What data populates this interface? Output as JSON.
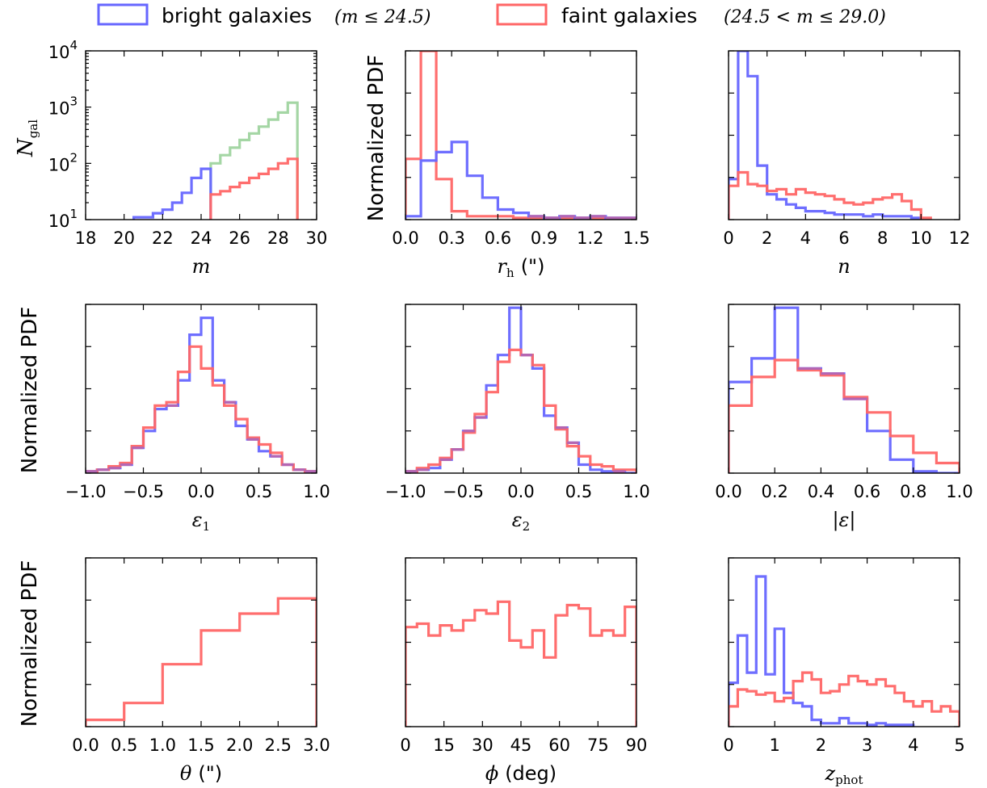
{
  "colors": {
    "bright": "#6666ff",
    "faint": "#ff6666",
    "all": "#9fd49f",
    "overlap": "#b0308a"
  },
  "legend": {
    "placement": "top",
    "bright_text": "bright galaxies",
    "bright_math": "(m ≤ 24.5)",
    "faint_text": "faint galaxies",
    "faint_math": "(24.5 < m ≤ 29.0)"
  },
  "chart_data": [
    {
      "type": "step-histogram",
      "panel": "m",
      "xlabel": "m",
      "ylabel": "N_gal",
      "log_y": true,
      "xlim": [
        18,
        30
      ],
      "ylim": [
        10,
        10000
      ],
      "xticks": [
        "18",
        "20",
        "22",
        "24",
        "26",
        "28",
        "30"
      ],
      "yticks": [
        {
          "value": 10,
          "base": "10",
          "exp": "1"
        },
        {
          "value": 100,
          "base": "10",
          "exp": "2"
        },
        {
          "value": 1000,
          "base": "10",
          "exp": "3"
        },
        {
          "value": 10000,
          "base": "10",
          "exp": "4"
        }
      ],
      "series": [
        {
          "key": "all",
          "color": "#9fd49f",
          "edges": [
            24.5,
            25,
            25.5,
            26,
            26.5,
            27,
            27.5,
            28,
            28.5,
            29
          ],
          "values": [
            100,
            140,
            190,
            260,
            340,
            450,
            600,
            800,
            1200
          ]
        },
        {
          "key": "bright",
          "color": "#6666ff",
          "edges": [
            20.5,
            21,
            21.5,
            22,
            22.5,
            23,
            23.5,
            24,
            24.5
          ],
          "values": [
            11,
            11,
            13,
            15,
            20,
            30,
            55,
            80
          ]
        },
        {
          "key": "faint",
          "color": "#ff6666",
          "edges": [
            24.5,
            25,
            25.5,
            26,
            26.5,
            27,
            27.5,
            28,
            28.5,
            29
          ],
          "values": [
            28,
            32,
            38,
            45,
            55,
            65,
            80,
            100,
            120
          ]
        }
      ]
    },
    {
      "type": "step-histogram",
      "panel": "r_h",
      "xlabel": "r_h (\")",
      "ylabel": "Normalized PDF",
      "xlim": [
        0,
        1.5
      ],
      "ylim": [
        0,
        1
      ],
      "xticks": [
        "0.0",
        "0.3",
        "0.6",
        "0.9",
        "1.2",
        "1.5"
      ],
      "ytick_count": 5,
      "series": [
        {
          "key": "faint",
          "color": "#ff6666",
          "edges": [
            0,
            0.1,
            0.2,
            0.3,
            0.4,
            0.5,
            0.6,
            0.7,
            0.8,
            0.9,
            1.0,
            1.1,
            1.2,
            1.3,
            1.4,
            1.5
          ],
          "values": [
            0.36,
            1.0,
            0.24,
            0.05,
            0.02,
            0.02,
            0.02,
            0.01,
            0.01,
            0.01,
            0.01,
            0.01,
            0.01,
            0.0,
            0.0
          ]
        },
        {
          "key": "bright",
          "color": "#6666ff",
          "edges": [
            0,
            0.1,
            0.2,
            0.3,
            0.4,
            0.5,
            0.6,
            0.7,
            0.8,
            0.9,
            1.0,
            1.1,
            1.2,
            1.3,
            1.4,
            1.5
          ],
          "values": [
            0.02,
            0.35,
            0.4,
            0.46,
            0.26,
            0.13,
            0.06,
            0.04,
            0.02,
            0.01,
            0.02,
            0.01,
            0.02,
            0.01,
            0.01
          ]
        }
      ]
    },
    {
      "type": "step-histogram",
      "panel": "n",
      "xlabel": "n",
      "ylabel": "",
      "xlim": [
        0,
        12
      ],
      "ylim": [
        0,
        1
      ],
      "xticks": [
        "0",
        "2",
        "4",
        "6",
        "8",
        "10",
        "12"
      ],
      "ytick_count": 5,
      "series": [
        {
          "key": "bright",
          "color": "#6666ff",
          "edges": [
            0,
            0.5,
            1,
            1.5,
            2,
            2.5,
            3,
            3.5,
            4,
            4.5,
            5,
            5.5,
            6,
            6.5,
            7,
            7.5,
            8,
            8.5,
            9,
            9.5,
            10
          ],
          "values": [
            0.24,
            1.0,
            0.85,
            0.32,
            0.15,
            0.12,
            0.09,
            0.07,
            0.05,
            0.05,
            0.04,
            0.03,
            0.03,
            0.03,
            0.02,
            0.03,
            0.02,
            0.02,
            0.02,
            0.01
          ]
        },
        {
          "key": "faint",
          "color": "#ff6666",
          "edges": [
            0,
            0.5,
            1,
            1.5,
            2,
            2.5,
            3,
            3.5,
            4,
            4.5,
            5,
            5.5,
            6,
            6.5,
            7,
            7.5,
            8,
            8.5,
            9,
            9.5,
            10,
            10.5
          ],
          "values": [
            0.2,
            0.28,
            0.21,
            0.2,
            0.17,
            0.18,
            0.15,
            0.18,
            0.16,
            0.15,
            0.14,
            0.12,
            0.1,
            0.09,
            0.1,
            0.12,
            0.13,
            0.15,
            0.11,
            0.06,
            0.01
          ]
        }
      ]
    },
    {
      "type": "step-histogram",
      "panel": "epsilon_1",
      "xlabel": "ε1",
      "ylabel": "Normalized PDF",
      "xlim": [
        -1,
        1
      ],
      "ylim": [
        0,
        1
      ],
      "xticks": [
        "−1.0",
        "−0.5",
        "0.0",
        "0.5",
        "1.0"
      ],
      "ytick_count": 5,
      "series": [
        {
          "key": "bright",
          "color": "#6666ff",
          "edges": [
            -1,
            -0.9,
            -0.8,
            -0.7,
            -0.6,
            -0.5,
            -0.4,
            -0.3,
            -0.2,
            -0.1,
            0,
            0.1,
            0.2,
            0.3,
            0.4,
            0.5,
            0.6,
            0.7,
            0.8,
            0.9,
            1.0
          ],
          "values": [
            0.01,
            0.02,
            0.03,
            0.05,
            0.15,
            0.25,
            0.38,
            0.4,
            0.55,
            0.82,
            0.92,
            0.55,
            0.42,
            0.28,
            0.2,
            0.13,
            0.1,
            0.05,
            0.02,
            0.01
          ]
        },
        {
          "key": "faint",
          "color": "#ff6666",
          "edges": [
            -1,
            -0.9,
            -0.8,
            -0.7,
            -0.6,
            -0.5,
            -0.4,
            -0.3,
            -0.2,
            -0.1,
            0,
            0.1,
            0.2,
            0.3,
            0.4,
            0.5,
            0.6,
            0.7,
            0.8,
            0.9,
            1.0
          ],
          "values": [
            0.01,
            0.02,
            0.04,
            0.06,
            0.16,
            0.27,
            0.4,
            0.42,
            0.6,
            0.75,
            0.62,
            0.52,
            0.4,
            0.32,
            0.21,
            0.17,
            0.12,
            0.05,
            0.02,
            0.01
          ]
        }
      ]
    },
    {
      "type": "step-histogram",
      "panel": "epsilon_2",
      "xlabel": "ε2",
      "ylabel": "",
      "xlim": [
        -1,
        1
      ],
      "ylim": [
        0,
        1
      ],
      "xticks": [
        "−1.0",
        "−0.5",
        "0.0",
        "0.5",
        "1.0"
      ],
      "ytick_count": 5,
      "series": [
        {
          "key": "bright",
          "color": "#6666ff",
          "edges": [
            -1,
            -0.9,
            -0.8,
            -0.7,
            -0.6,
            -0.5,
            -0.4,
            -0.3,
            -0.2,
            -0.1,
            0,
            0.1,
            0.2,
            0.3,
            0.4,
            0.5,
            0.6,
            0.7,
            0.8,
            0.9,
            1.0
          ],
          "values": [
            0.01,
            0.02,
            0.03,
            0.08,
            0.14,
            0.25,
            0.33,
            0.52,
            0.7,
            0.98,
            0.7,
            0.62,
            0.34,
            0.27,
            0.18,
            0.05,
            0.02,
            0.01,
            0.01,
            0.0
          ]
        },
        {
          "key": "faint",
          "color": "#ff6666",
          "edges": [
            -1,
            -0.9,
            -0.8,
            -0.7,
            -0.6,
            -0.5,
            -0.4,
            -0.3,
            -0.2,
            -0.1,
            0,
            0.1,
            0.2,
            0.3,
            0.4,
            0.5,
            0.6,
            0.7,
            0.8,
            0.9,
            1.0
          ],
          "values": [
            0.01,
            0.03,
            0.05,
            0.09,
            0.14,
            0.24,
            0.35,
            0.48,
            0.66,
            0.73,
            0.7,
            0.64,
            0.4,
            0.26,
            0.16,
            0.1,
            0.05,
            0.04,
            0.02,
            0.02
          ]
        }
      ]
    },
    {
      "type": "step-histogram",
      "panel": "abs_epsilon",
      "xlabel": "|ε|",
      "ylabel": "",
      "xlim": [
        0,
        1
      ],
      "ylim": [
        0,
        1
      ],
      "xticks": [
        "0.0",
        "0.2",
        "0.4",
        "0.6",
        "0.8",
        "1.0"
      ],
      "ytick_count": 5,
      "series": [
        {
          "key": "bright",
          "color": "#6666ff",
          "edges": [
            0,
            0.1,
            0.2,
            0.3,
            0.4,
            0.5,
            0.6,
            0.7,
            0.8,
            0.9,
            1.0
          ],
          "values": [
            0.54,
            0.68,
            0.98,
            0.62,
            0.59,
            0.44,
            0.25,
            0.08,
            0.01,
            0.0
          ]
        },
        {
          "key": "faint",
          "color": "#ff6666",
          "edges": [
            0,
            0.1,
            0.2,
            0.3,
            0.4,
            0.5,
            0.6,
            0.7,
            0.8,
            0.9,
            1.0
          ],
          "values": [
            0.4,
            0.57,
            0.67,
            0.61,
            0.58,
            0.45,
            0.36,
            0.22,
            0.12,
            0.06
          ]
        }
      ]
    },
    {
      "type": "step-histogram",
      "panel": "theta",
      "xlabel": "θ (\")",
      "ylabel": "Normalized PDF",
      "xlim": [
        0,
        3
      ],
      "ylim": [
        0,
        1
      ],
      "xticks": [
        "0.0",
        "0.5",
        "1.0",
        "1.5",
        "2.0",
        "2.5",
        "3.0"
      ],
      "ytick_count": 5,
      "series": [
        {
          "key": "faint",
          "color": "#ff6666",
          "edges": [
            0,
            0.5,
            1,
            1.5,
            2,
            2.5,
            3
          ],
          "values": [
            0.04,
            0.14,
            0.37,
            0.57,
            0.67,
            0.76
          ]
        }
      ]
    },
    {
      "type": "step-histogram",
      "panel": "phi",
      "xlabel": "ϕ (deg)",
      "ylabel": "",
      "xlim": [
        0,
        90
      ],
      "ylim": [
        0,
        1
      ],
      "xticks": [
        "0",
        "15",
        "30",
        "45",
        "60",
        "75",
        "90"
      ],
      "ytick_count": 5,
      "series": [
        {
          "key": "faint",
          "color": "#ff6666",
          "edges": [
            0,
            4.5,
            9,
            13.5,
            18,
            22.5,
            27,
            31.5,
            36,
            40.5,
            45,
            49.5,
            54,
            58.5,
            63,
            67.5,
            72,
            76.5,
            81,
            85.5,
            90
          ],
          "values": [
            0.59,
            0.61,
            0.54,
            0.6,
            0.57,
            0.63,
            0.69,
            0.67,
            0.74,
            0.51,
            0.47,
            0.57,
            0.41,
            0.66,
            0.72,
            0.7,
            0.54,
            0.57,
            0.54,
            0.71
          ]
        }
      ]
    },
    {
      "type": "step-histogram",
      "panel": "z_phot",
      "xlabel": "z_phot",
      "ylabel": "",
      "xlim": [
        0,
        5
      ],
      "ylim": [
        0,
        1
      ],
      "xticks": [
        "0",
        "1",
        "2",
        "3",
        "4",
        "5"
      ],
      "ytick_count": 5,
      "series": [
        {
          "key": "bright",
          "color": "#6666ff",
          "edges": [
            0,
            0.2,
            0.4,
            0.6,
            0.8,
            1.0,
            1.2,
            1.4,
            1.6,
            1.8,
            2.0,
            2.2,
            2.4,
            2.6,
            2.8,
            3.0,
            3.2,
            3.4,
            3.6,
            3.8,
            4.0
          ],
          "values": [
            0.26,
            0.54,
            0.32,
            0.89,
            0.31,
            0.58,
            0.2,
            0.14,
            0.12,
            0.04,
            0.02,
            0.02,
            0.05,
            0.02,
            0.02,
            0.01,
            0.02,
            0.01,
            0.01,
            0.01
          ]
        },
        {
          "key": "faint",
          "color": "#ff6666",
          "edges": [
            0,
            0.2,
            0.4,
            0.6,
            0.8,
            1.0,
            1.2,
            1.4,
            1.6,
            1.8,
            2.0,
            2.2,
            2.4,
            2.6,
            2.8,
            3.0,
            3.2,
            3.4,
            3.6,
            3.8,
            4.0,
            4.2,
            4.4,
            4.6,
            4.8,
            5.0
          ],
          "values": [
            0.12,
            0.22,
            0.21,
            0.19,
            0.2,
            0.15,
            0.17,
            0.27,
            0.32,
            0.28,
            0.2,
            0.21,
            0.25,
            0.3,
            0.27,
            0.25,
            0.28,
            0.24,
            0.2,
            0.15,
            0.12,
            0.15,
            0.09,
            0.12,
            0.09
          ]
        }
      ]
    }
  ]
}
